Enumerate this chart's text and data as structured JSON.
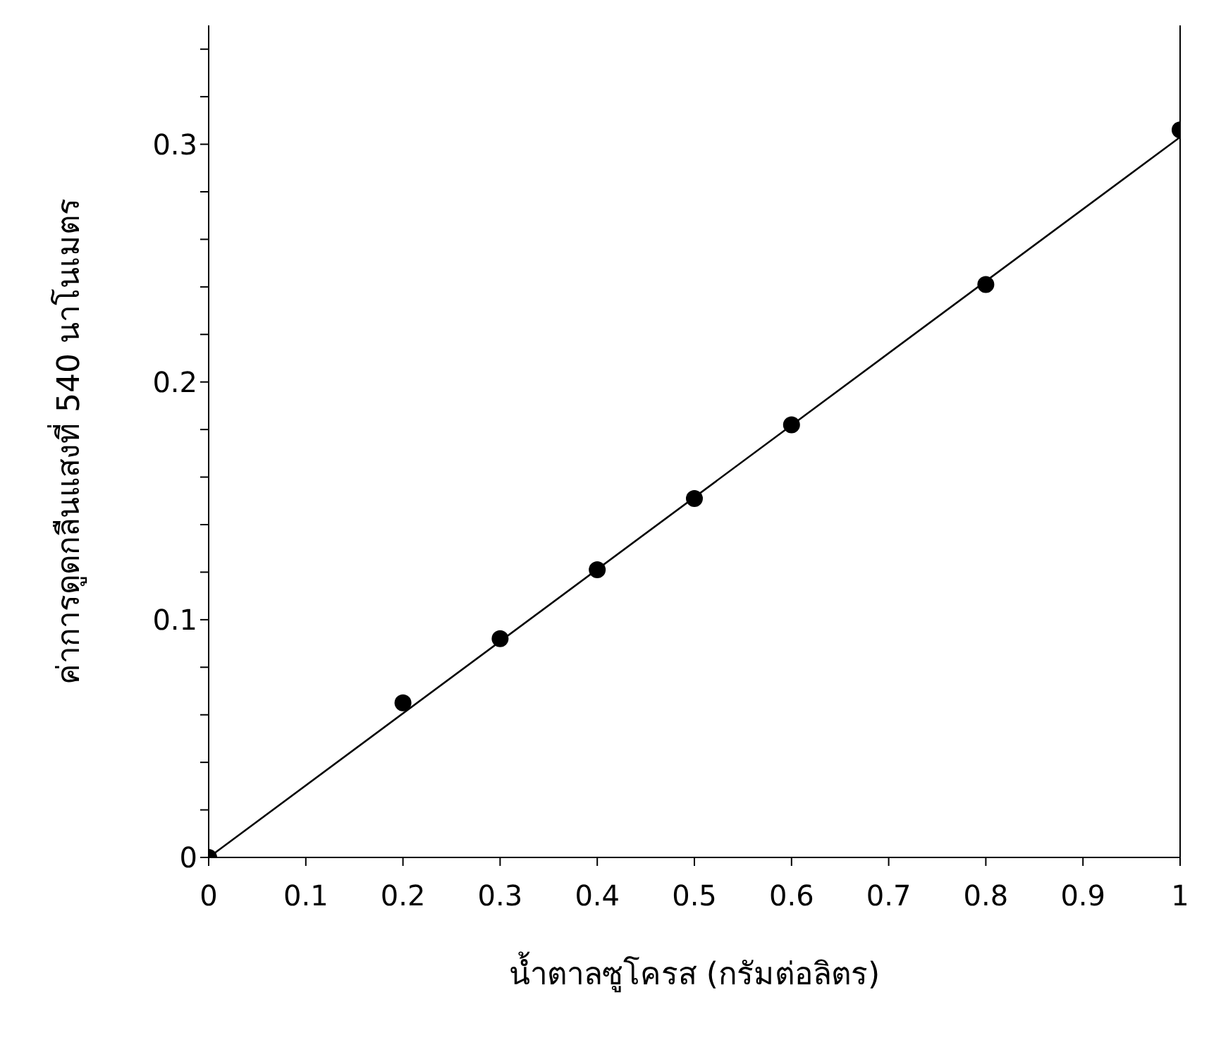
{
  "chart_data": {
    "type": "scatter",
    "xlabel": "น้ำตาลซูโครส (กรัมต่อลิตร)",
    "ylabel": "ค่าการดูดกลืนแสงที่ 540 นาโนเมตร",
    "xlim": [
      0,
      1
    ],
    "xticks": [
      0,
      0.1,
      0.2,
      0.3,
      0.4,
      0.5,
      0.6,
      0.7,
      0.8,
      0.9,
      1
    ],
    "ylim": [
      0,
      0.35
    ],
    "yticks": [
      0,
      {
        "value": 0.02,
        "label": null
      },
      {
        "value": 0.04,
        "label": null
      },
      {
        "value": 0.06,
        "label": null
      },
      {
        "value": 0.08,
        "label": null
      },
      0.1,
      {
        "value": 0.12,
        "label": null
      },
      {
        "value": 0.14,
        "label": null
      },
      {
        "value": 0.16,
        "label": null
      },
      {
        "value": 0.18,
        "label": null
      },
      0.2,
      {
        "value": 0.22,
        "label": null
      },
      {
        "value": 0.24,
        "label": null
      },
      {
        "value": 0.26,
        "label": null
      },
      {
        "value": 0.28,
        "label": null
      },
      0.3,
      {
        "value": 0.32,
        "label": null
      },
      {
        "value": 0.34,
        "label": null
      }
    ],
    "grid": false,
    "marker": "circle",
    "series": [
      {
        "color": "#000000",
        "x": [
          0,
          0.2,
          0.3,
          0.4,
          0.5,
          0.6,
          0.8,
          1
        ],
        "values": [
          0,
          0.065,
          0.092,
          0.121,
          0.151,
          0.182,
          0.241,
          0.306
        ]
      },
      {
        "type": "line",
        "color": "#000000",
        "x": [
          0,
          1
        ],
        "values": [
          0,
          0.303
        ],
        "marker": "none",
        "line_style": "solid"
      }
    ]
  }
}
